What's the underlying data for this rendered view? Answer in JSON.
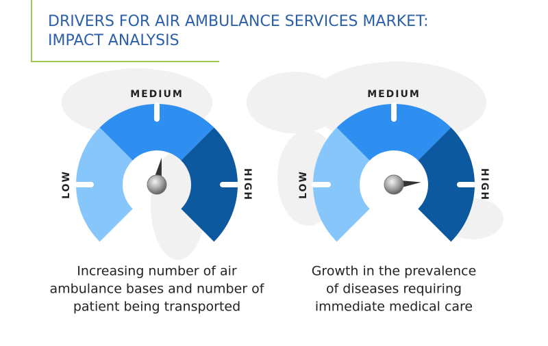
{
  "header": {
    "title_lines": [
      "DRIVERS FOR AIR AMBULANCE SERVICES MARKET:",
      "IMPACT ANALYSIS"
    ]
  },
  "gauges": [
    {
      "low": "LOW",
      "medium": "MEDIUM",
      "high": "HIGH",
      "description_lines": [
        "Increasing number of air",
        "ambulance bases and number of",
        "patient being transported"
      ]
    },
    {
      "low": "LOW",
      "medium": "MEDIUM",
      "high": "HIGH",
      "description_lines": [
        "Growth in the prevalence",
        "of diseases requiring",
        "immediate medical care"
      ]
    }
  ]
}
